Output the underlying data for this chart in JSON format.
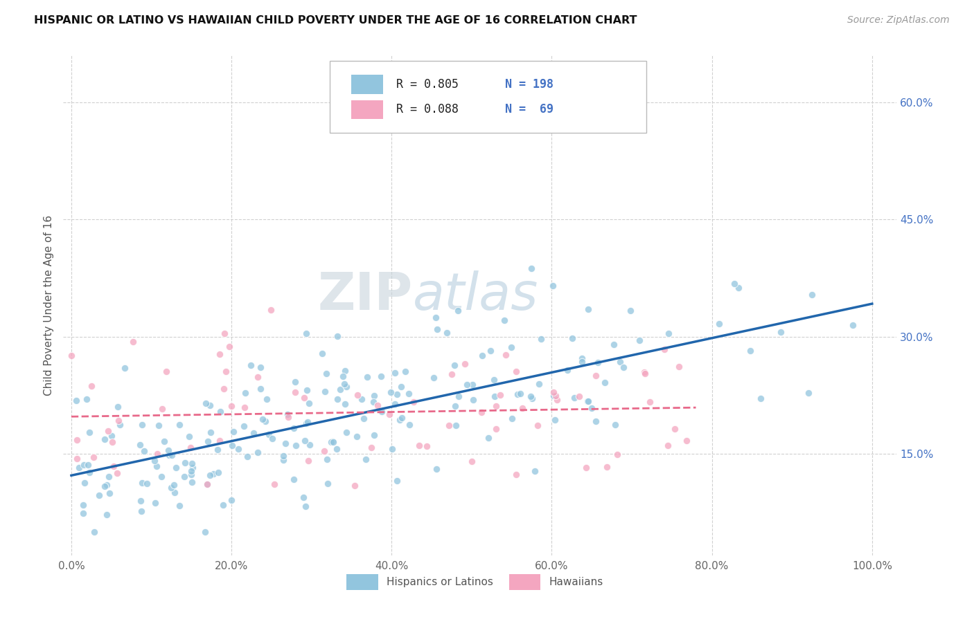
{
  "title": "HISPANIC OR LATINO VS HAWAIIAN CHILD POVERTY UNDER THE AGE OF 16 CORRELATION CHART",
  "source": "Source: ZipAtlas.com",
  "xlabel_ticks": [
    "0.0%",
    "20.0%",
    "40.0%",
    "60.0%",
    "80.0%",
    "100.0%"
  ],
  "xlabel_vals": [
    0,
    0.2,
    0.4,
    0.6,
    0.8,
    1.0
  ],
  "ylabel_ticks": [
    "15.0%",
    "30.0%",
    "45.0%",
    "60.0%"
  ],
  "ylabel_vals": [
    0.15,
    0.3,
    0.45,
    0.6
  ],
  "ylabel_label": "Child Poverty Under the Age of 16",
  "legend_label1": "Hispanics or Latinos",
  "legend_label2": "Hawaiians",
  "R1": 0.805,
  "N1": 198,
  "R2": 0.088,
  "N2": 69,
  "color_blue": "#92c5de",
  "color_pink": "#f4a6c0",
  "color_blue_line": "#2166ac",
  "color_pink_line": "#e8698a",
  "watermark_color": "#d0dce8",
  "background_color": "#ffffff",
  "grid_color": "#d0d0d0",
  "xlim": [
    -0.01,
    1.03
  ],
  "ylim": [
    0.02,
    0.66
  ]
}
